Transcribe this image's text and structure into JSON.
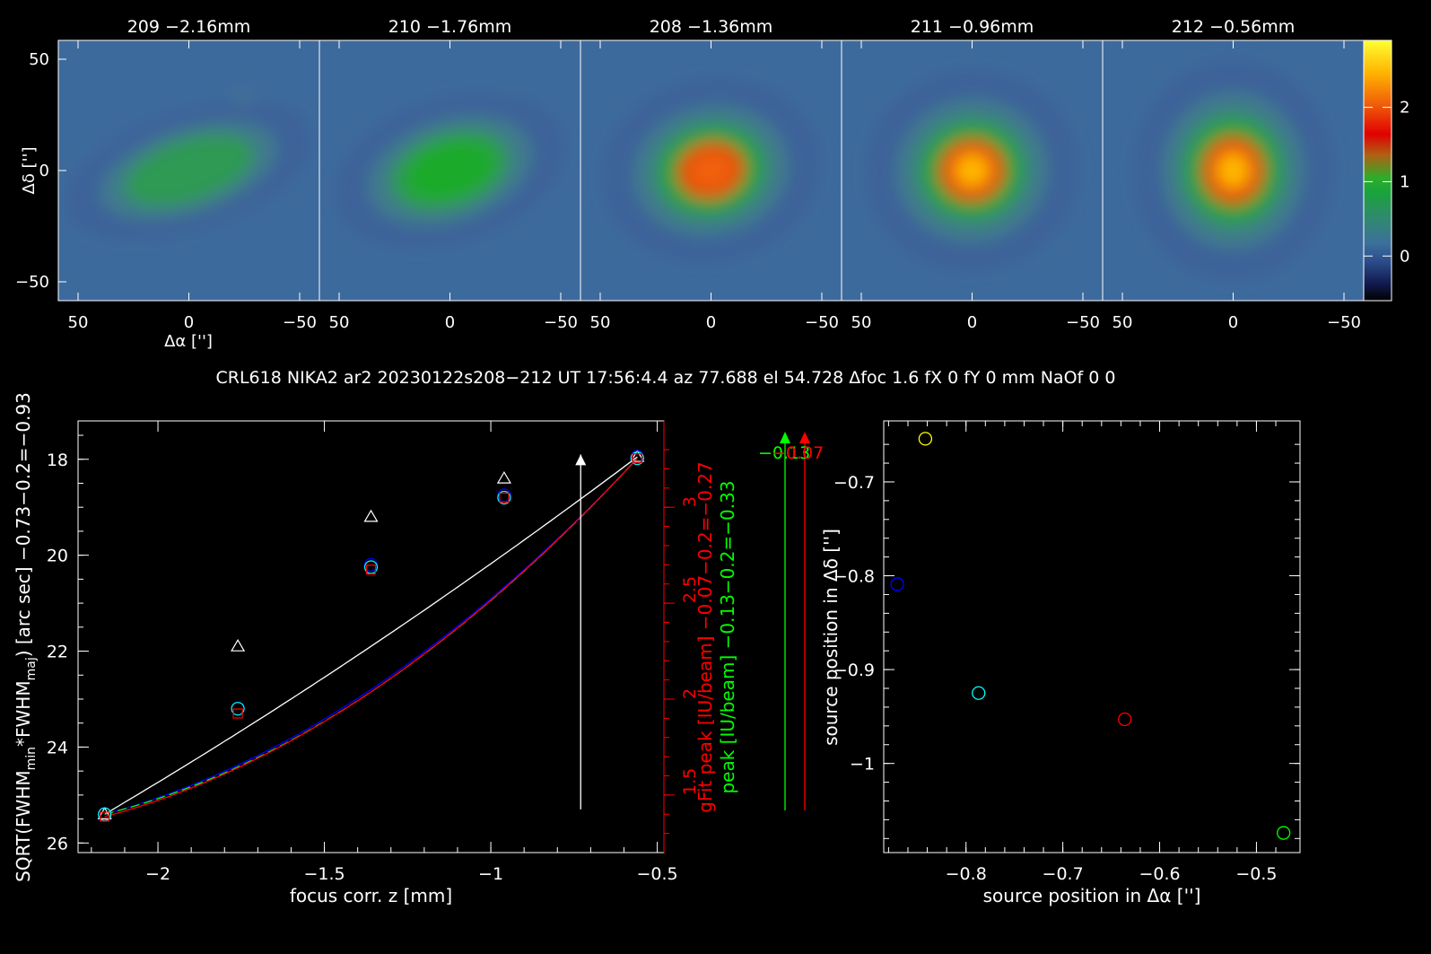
{
  "header": {
    "title": "CRL618 NIKA2 ar2 20230122s208−212 UT 17:56:4.4 az 77.688 el 54.728 Δfoc 1.6 fX 0 fY 0 mm NaOf 0 0"
  },
  "maps": {
    "panels": [
      {
        "label": "209 −2.16mm",
        "peak": 1.0,
        "elong": 1.55,
        "angle": -18
      },
      {
        "label": "210 −1.76mm",
        "peak": 1.55,
        "elong": 1.35,
        "angle": -18
      },
      {
        "label": "208 −1.36mm",
        "peak": 2.45,
        "elong": 1.15,
        "angle": -12
      },
      {
        "label": "211 −0.96mm",
        "peak": 2.85,
        "elong": 1.08,
        "angle": -8
      },
      {
        "label": "212 −0.56mm",
        "peak": 3.0,
        "elong": 1.0,
        "angle": 0
      }
    ],
    "x_ticks": [
      "50",
      "0",
      "−50"
    ],
    "y_ticks": [
      "50",
      "0",
      "−50"
    ],
    "xlabel": "Δα ['']",
    "ylabel": "Δδ ['']",
    "colorbar_ticks": [
      "2",
      "1",
      "0"
    ],
    "colorbar_range": [
      -0.6,
      2.9
    ]
  },
  "chart_data": [
    {
      "type": "scatter",
      "name": "focus",
      "xlabel": "focus corr. z [mm]",
      "ylabel_prefix": "SQRT(FWHM",
      "ylabel_sub1": "min",
      "ylabel_mid": "*FWHM",
      "ylabel_sub2": "maj",
      "ylabel_suffix": ") [arc sec] −0.73−0.2=−0.93",
      "xlim": [
        -2.24,
        -0.48
      ],
      "ylim": [
        26.2,
        17.2
      ],
      "x_ticks": [
        {
          "v": -2,
          "t": "−2"
        },
        {
          "v": -1.5,
          "t": "−1.5"
        },
        {
          "v": -1,
          "t": "−1"
        },
        {
          "v": -0.5,
          "t": "−0.5"
        }
      ],
      "y_ticks": [
        {
          "v": 18,
          "t": "18"
        },
        {
          "v": 20,
          "t": "20"
        },
        {
          "v": 22,
          "t": "22"
        },
        {
          "v": 24,
          "t": "24"
        },
        {
          "v": 26,
          "t": "26"
        }
      ],
      "y2_label_red": "gFit peak [IU/beam] −0.07−0.2=−0.27",
      "y2_label_green": "peak [IU/beam] −0.13−0.2=−0.33",
      "y2_lim": [
        1.2,
        3.45
      ],
      "y2_ticks": [
        {
          "v": 1.5,
          "t": "1.5"
        },
        {
          "v": 2,
          "t": "2"
        },
        {
          "v": 2.5,
          "t": "2.5"
        },
        {
          "v": 3,
          "t": "3"
        }
      ],
      "x": [
        -2.16,
        -1.76,
        -1.36,
        -0.96,
        -0.56
      ],
      "series": [
        {
          "marker": "triangle",
          "color": "#ffffff",
          "values": [
            25.4,
            21.9,
            19.2,
            18.4,
            17.95
          ]
        },
        {
          "marker": "circle",
          "color": "#0000ff",
          "values": [
            25.4,
            23.2,
            20.2,
            18.75,
            17.95
          ]
        },
        {
          "marker": "circle",
          "color": "#00ffff",
          "values": [
            25.4,
            23.2,
            20.25,
            18.8,
            17.98
          ]
        },
        {
          "marker": "square",
          "color": "#ff0000",
          "values": [
            25.45,
            23.3,
            20.3,
            18.8,
            17.98
          ]
        }
      ],
      "fits": [
        {
          "color": "#ffffff",
          "coef": [
            25.4,
            21.9,
            17.95
          ],
          "dash": false
        },
        {
          "color": "#0000ff",
          "coef": [
            25.4,
            22.8,
            17.98
          ],
          "dash": false
        },
        {
          "color": "#00ff00",
          "coef": [
            25.4,
            22.85,
            17.98
          ],
          "dash": true
        },
        {
          "color": "#ff0000",
          "coef": [
            25.45,
            22.85,
            17.98
          ],
          "dash": false
        }
      ],
      "best_focus": {
        "value": -0.73,
        "ybottom": 25.3,
        "ytop": 17.9
      },
      "peak_arrows": [
        {
          "color": "#00ff00",
          "label": "−0.13"
        },
        {
          "color": "#ff0000",
          "label": "−0.07"
        }
      ]
    },
    {
      "type": "scatter",
      "name": "position",
      "xlabel": "source position in Δα ['']",
      "ylabel": "source position in Δδ ['']",
      "xlim": [
        -0.885,
        -0.455
      ],
      "ylim": [
        -1.095,
        -0.635
      ],
      "x_ticks": [
        {
          "v": -0.8,
          "t": "−0.8"
        },
        {
          "v": -0.7,
          "t": "−0.7"
        },
        {
          "v": -0.6,
          "t": "−0.6"
        },
        {
          "v": -0.5,
          "t": "−0.5"
        }
      ],
      "y_ticks": [
        {
          "v": -0.7,
          "t": "−0.7"
        },
        {
          "v": -0.8,
          "t": "−0.8"
        },
        {
          "v": -0.9,
          "t": "−0.9"
        },
        {
          "v": -1,
          "t": "−1"
        }
      ],
      "points": [
        {
          "x": -0.871,
          "y": -0.809,
          "color": "#0000ff"
        },
        {
          "x": -0.842,
          "y": -0.654,
          "color": "#ffff00"
        },
        {
          "x": -0.787,
          "y": -0.925,
          "color": "#00ffff"
        },
        {
          "x": -0.636,
          "y": -0.953,
          "color": "#ff0000"
        },
        {
          "x": -0.472,
          "y": -1.074,
          "color": "#00ff00"
        }
      ]
    }
  ]
}
